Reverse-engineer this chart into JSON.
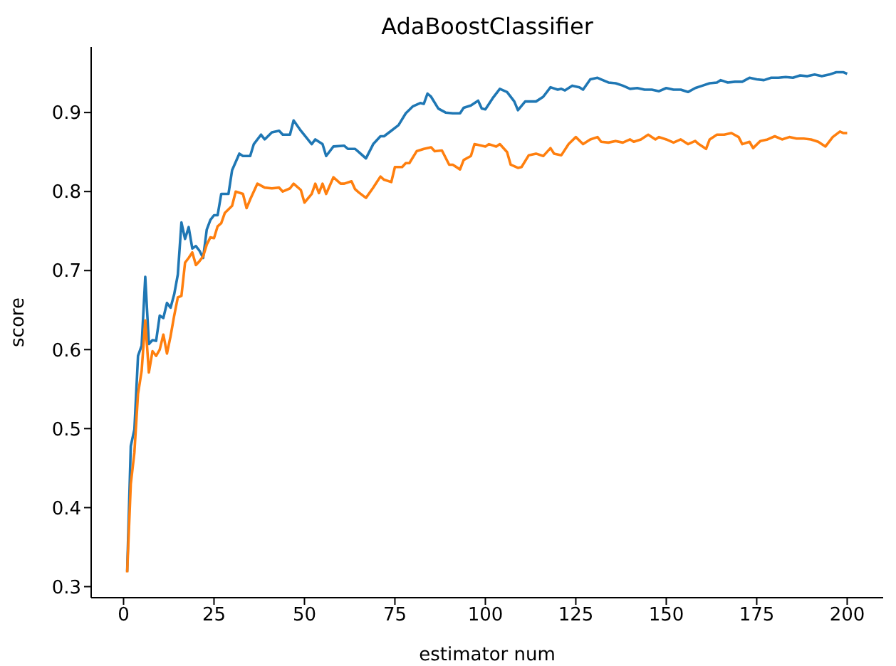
{
  "chart_data": {
    "type": "line",
    "title": "AdaBoostClassifier",
    "xlabel": "estimator num",
    "ylabel": "score",
    "xlim": [
      -8.95,
      209.95
    ],
    "ylim": [
      0.286,
      0.983
    ],
    "xticks": [
      0,
      25,
      50,
      75,
      100,
      125,
      150,
      175,
      200
    ],
    "yticks": [
      0.3,
      0.4,
      0.5,
      0.6,
      0.7,
      0.8,
      0.9
    ],
    "grid": false,
    "legend": false,
    "marker": "none",
    "line_style": "solid",
    "series": [
      {
        "color": "#1f77b4",
        "x": [
          1,
          2,
          3,
          4,
          5,
          6,
          7,
          8,
          9,
          10,
          11,
          12,
          13,
          14,
          15,
          16,
          17,
          18,
          19,
          20,
          21,
          22,
          23,
          24,
          25,
          26,
          27,
          29,
          30,
          32,
          33,
          35,
          36,
          38,
          39,
          41,
          43,
          44,
          46,
          47,
          49,
          52,
          53,
          54,
          55,
          56,
          58,
          61,
          62,
          64,
          65,
          67,
          69,
          71,
          72,
          74,
          76,
          78,
          80,
          82,
          83,
          84,
          85,
          87,
          89,
          91,
          93,
          94,
          96,
          98,
          99,
          100,
          102,
          104,
          106,
          108,
          109,
          111,
          114,
          116,
          118,
          120,
          121,
          122,
          124,
          126,
          127,
          129,
          131,
          132,
          134,
          136,
          138,
          140,
          142,
          144,
          146,
          148,
          150,
          152,
          154,
          156,
          158,
          160,
          162,
          164,
          165,
          167,
          169,
          171,
          173,
          175,
          177,
          179,
          181,
          183,
          185,
          187,
          189,
          191,
          193,
          195,
          197,
          199,
          200
        ],
        "values": [
          0.319,
          0.478,
          0.499,
          0.592,
          0.605,
          0.692,
          0.607,
          0.612,
          0.611,
          0.643,
          0.64,
          0.659,
          0.653,
          0.67,
          0.695,
          0.761,
          0.74,
          0.755,
          0.728,
          0.731,
          0.725,
          0.716,
          0.752,
          0.764,
          0.77,
          0.77,
          0.797,
          0.797,
          0.827,
          0.848,
          0.845,
          0.845,
          0.86,
          0.872,
          0.866,
          0.875,
          0.877,
          0.872,
          0.872,
          0.89,
          0.877,
          0.86,
          0.866,
          0.863,
          0.86,
          0.845,
          0.857,
          0.858,
          0.854,
          0.854,
          0.85,
          0.842,
          0.86,
          0.87,
          0.87,
          0.877,
          0.884,
          0.899,
          0.908,
          0.912,
          0.911,
          0.924,
          0.92,
          0.905,
          0.9,
          0.899,
          0.899,
          0.906,
          0.909,
          0.915,
          0.905,
          0.904,
          0.918,
          0.93,
          0.926,
          0.914,
          0.903,
          0.914,
          0.914,
          0.92,
          0.932,
          0.929,
          0.93,
          0.928,
          0.934,
          0.932,
          0.929,
          0.942,
          0.944,
          0.942,
          0.938,
          0.937,
          0.934,
          0.93,
          0.931,
          0.929,
          0.929,
          0.927,
          0.931,
          0.929,
          0.929,
          0.926,
          0.931,
          0.934,
          0.937,
          0.938,
          0.941,
          0.938,
          0.939,
          0.939,
          0.944,
          0.942,
          0.941,
          0.944,
          0.944,
          0.945,
          0.944,
          0.947,
          0.946,
          0.948,
          0.946,
          0.948,
          0.951,
          0.951,
          0.949
        ]
      },
      {
        "color": "#ff7f0e",
        "x": [
          1,
          2,
          3,
          4,
          5,
          6,
          7,
          8,
          9,
          10,
          11,
          12,
          13,
          14,
          15,
          16,
          17,
          18,
          19,
          20,
          21,
          22,
          23,
          24,
          25,
          26,
          27,
          28,
          30,
          31,
          33,
          34,
          35,
          37,
          39,
          41,
          43,
          44,
          46,
          47,
          49,
          50,
          52,
          53,
          54,
          55,
          56,
          58,
          60,
          61,
          63,
          64,
          65,
          67,
          69,
          71,
          72,
          74,
          75,
          77,
          78,
          79,
          81,
          83,
          85,
          86,
          88,
          90,
          91,
          93,
          94,
          96,
          97,
          99,
          100,
          101,
          103,
          104,
          106,
          107,
          109,
          110,
          112,
          114,
          116,
          118,
          119,
          121,
          123,
          125,
          127,
          129,
          131,
          132,
          134,
          136,
          138,
          140,
          141,
          143,
          145,
          147,
          148,
          150,
          152,
          154,
          156,
          158,
          159,
          161,
          162,
          164,
          166,
          168,
          170,
          171,
          173,
          174,
          176,
          178,
          180,
          182,
          184,
          186,
          188,
          190,
          192,
          194,
          196,
          198,
          199,
          200
        ],
        "values": [
          0.318,
          0.43,
          0.47,
          0.544,
          0.573,
          0.637,
          0.571,
          0.598,
          0.592,
          0.6,
          0.619,
          0.595,
          0.617,
          0.643,
          0.666,
          0.668,
          0.71,
          0.716,
          0.723,
          0.707,
          0.712,
          0.718,
          0.733,
          0.742,
          0.741,
          0.756,
          0.76,
          0.773,
          0.782,
          0.8,
          0.797,
          0.779,
          0.79,
          0.81,
          0.805,
          0.804,
          0.805,
          0.8,
          0.804,
          0.81,
          0.802,
          0.786,
          0.797,
          0.81,
          0.798,
          0.81,
          0.797,
          0.818,
          0.81,
          0.81,
          0.813,
          0.803,
          0.799,
          0.792,
          0.805,
          0.819,
          0.815,
          0.812,
          0.831,
          0.831,
          0.836,
          0.836,
          0.851,
          0.854,
          0.856,
          0.851,
          0.852,
          0.834,
          0.834,
          0.828,
          0.84,
          0.845,
          0.86,
          0.858,
          0.857,
          0.86,
          0.857,
          0.86,
          0.85,
          0.834,
          0.83,
          0.831,
          0.846,
          0.848,
          0.845,
          0.855,
          0.848,
          0.846,
          0.86,
          0.869,
          0.86,
          0.866,
          0.869,
          0.863,
          0.862,
          0.864,
          0.862,
          0.866,
          0.863,
          0.866,
          0.872,
          0.866,
          0.869,
          0.866,
          0.862,
          0.866,
          0.86,
          0.864,
          0.86,
          0.854,
          0.866,
          0.872,
          0.872,
          0.874,
          0.869,
          0.86,
          0.863,
          0.855,
          0.864,
          0.866,
          0.87,
          0.866,
          0.869,
          0.867,
          0.867,
          0.866,
          0.863,
          0.857,
          0.869,
          0.876,
          0.874,
          0.874
        ]
      }
    ]
  }
}
